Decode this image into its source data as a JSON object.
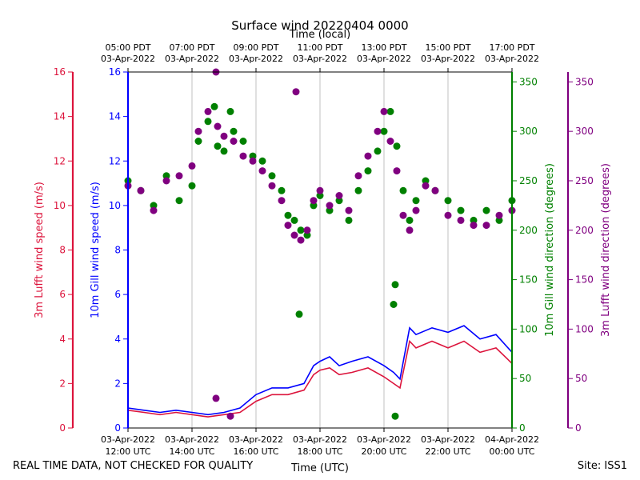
{
  "chart_data": {
    "type": "scatter+line",
    "title": "Surface wind 20220404 0000",
    "top_xlabel": "Time (local)",
    "bottom_xlabel": "Time (UTC)",
    "x_range_hours_utc": [
      12,
      24
    ],
    "top_ticks": [
      {
        "t": 12,
        "line1": "05:00 PDT",
        "line2": "03-Apr-2022"
      },
      {
        "t": 14,
        "line1": "07:00 PDT",
        "line2": "03-Apr-2022"
      },
      {
        "t": 16,
        "line1": "09:00 PDT",
        "line2": "03-Apr-2022"
      },
      {
        "t": 18,
        "line1": "11:00 PDT",
        "line2": "03-Apr-2022"
      },
      {
        "t": 20,
        "line1": "13:00 PDT",
        "line2": "03-Apr-2022"
      },
      {
        "t": 22,
        "line1": "15:00 PDT",
        "line2": "03-Apr-2022"
      },
      {
        "t": 24,
        "line1": "17:00 PDT",
        "line2": "03-Apr-2022"
      }
    ],
    "bottom_ticks": [
      {
        "t": 12,
        "line1": "03-Apr-2022",
        "line2": "12:00 UTC"
      },
      {
        "t": 14,
        "line1": "03-Apr-2022",
        "line2": "14:00 UTC"
      },
      {
        "t": 16,
        "line1": "03-Apr-2022",
        "line2": "16:00 UTC"
      },
      {
        "t": 18,
        "line1": "03-Apr-2022",
        "line2": "18:00 UTC"
      },
      {
        "t": 20,
        "line1": "03-Apr-2022",
        "line2": "20:00 UTC"
      },
      {
        "t": 22,
        "line1": "03-Apr-2022",
        "line2": "22:00 UTC"
      },
      {
        "t": 24,
        "line1": "04-Apr-2022",
        "line2": "00:00 UTC"
      }
    ],
    "axes": [
      {
        "id": "lufft_speed",
        "label": "3m Lufft wind speed (m/s)",
        "color": "#dc143c",
        "range": [
          0,
          16
        ],
        "ticks": [
          0,
          2,
          4,
          6,
          8,
          10,
          12,
          14,
          16
        ]
      },
      {
        "id": "gill_speed",
        "label": "10m Gill wind speed (m/s)",
        "color": "#0000ff",
        "range": [
          0,
          16
        ],
        "ticks": [
          0,
          2,
          4,
          6,
          8,
          10,
          12,
          14,
          16
        ]
      },
      {
        "id": "gill_dir",
        "label": "10m Gill wind direction (degrees)",
        "color": "#008000",
        "range": [
          0,
          360
        ],
        "ticks": [
          0,
          50,
          100,
          150,
          200,
          250,
          300,
          350
        ]
      },
      {
        "id": "lufft_dir",
        "label": "3m Lufft wind direction (degrees)",
        "color": "#800080",
        "range": [
          0,
          360
        ],
        "ticks": [
          0,
          50,
          100,
          150,
          200,
          250,
          300,
          350
        ]
      }
    ],
    "series": [
      {
        "name": "10m Gill wind speed",
        "axis": "gill_speed",
        "kind": "line",
        "color": "#0000ff",
        "x": [
          12.0,
          12.5,
          13.0,
          13.5,
          14.0,
          14.5,
          15.0,
          15.5,
          16.0,
          16.5,
          17.0,
          17.5,
          17.8,
          18.0,
          18.3,
          18.6,
          19.0,
          19.5,
          20.0,
          20.3,
          20.5,
          20.8,
          21.0,
          21.5,
          22.0,
          22.5,
          23.0,
          23.5,
          24.0
        ],
        "values": [
          0.9,
          0.8,
          0.7,
          0.8,
          0.7,
          0.6,
          0.7,
          0.9,
          1.5,
          1.8,
          1.8,
          2.0,
          2.8,
          3.0,
          3.2,
          2.8,
          3.0,
          3.2,
          2.8,
          2.5,
          2.2,
          4.5,
          4.2,
          4.5,
          4.3,
          4.6,
          4.0,
          4.2,
          3.4
        ]
      },
      {
        "name": "3m Lufft wind speed",
        "axis": "lufft_speed",
        "kind": "line",
        "color": "#dc143c",
        "x": [
          12.0,
          12.5,
          13.0,
          13.5,
          14.0,
          14.5,
          15.0,
          15.5,
          16.0,
          16.5,
          17.0,
          17.5,
          17.8,
          18.0,
          18.3,
          18.6,
          19.0,
          19.5,
          20.0,
          20.3,
          20.5,
          20.8,
          21.0,
          21.5,
          22.0,
          22.5,
          23.0,
          23.5,
          24.0
        ],
        "values": [
          0.8,
          0.7,
          0.6,
          0.7,
          0.6,
          0.5,
          0.6,
          0.7,
          1.2,
          1.5,
          1.5,
          1.7,
          2.4,
          2.6,
          2.7,
          2.4,
          2.5,
          2.7,
          2.3,
          2.0,
          1.8,
          3.9,
          3.6,
          3.9,
          3.6,
          3.9,
          3.4,
          3.6,
          2.9
        ]
      },
      {
        "name": "10m Gill wind direction",
        "axis": "gill_dir",
        "kind": "scatter",
        "color": "#008000",
        "x": [
          12.0,
          12.4,
          12.8,
          13.2,
          13.6,
          14.0,
          14.2,
          14.5,
          14.8,
          15.0,
          15.3,
          15.6,
          15.9,
          16.2,
          16.5,
          16.8,
          17.0,
          17.2,
          17.4,
          17.6,
          17.8,
          18.0,
          18.3,
          18.6,
          18.9,
          19.2,
          19.5,
          19.8,
          20.0,
          20.2,
          20.4,
          20.6,
          20.8,
          21.0,
          21.3,
          21.6,
          22.0,
          22.4,
          22.8,
          23.2,
          23.6,
          24.0,
          17.35,
          20.3,
          20.35,
          20.35,
          15.2,
          14.7
        ],
        "values": [
          250,
          240,
          225,
          255,
          230,
          245,
          290,
          310,
          285,
          280,
          300,
          290,
          275,
          270,
          255,
          240,
          215,
          210,
          200,
          195,
          225,
          235,
          220,
          230,
          210,
          240,
          260,
          280,
          300,
          320,
          285,
          240,
          210,
          230,
          250,
          240,
          230,
          220,
          210,
          220,
          210,
          230,
          115,
          125,
          145,
          12,
          320,
          325
        ]
      },
      {
        "name": "3m Lufft wind direction",
        "axis": "lufft_dir",
        "kind": "scatter",
        "color": "#800080",
        "x": [
          12.0,
          12.4,
          12.8,
          13.2,
          13.6,
          14.0,
          14.2,
          14.5,
          14.8,
          15.0,
          15.3,
          15.6,
          15.9,
          16.2,
          16.5,
          16.8,
          17.0,
          17.2,
          17.4,
          17.6,
          17.8,
          18.0,
          18.3,
          18.6,
          18.9,
          19.2,
          19.5,
          19.8,
          20.0,
          20.2,
          20.4,
          20.6,
          20.8,
          21.0,
          21.3,
          21.6,
          22.0,
          22.4,
          22.8,
          23.2,
          23.6,
          24.0,
          14.75,
          17.25,
          14.75,
          15.2
        ],
        "values": [
          245,
          240,
          220,
          250,
          255,
          265,
          300,
          320,
          305,
          295,
          290,
          275,
          270,
          260,
          245,
          230,
          205,
          195,
          190,
          200,
          230,
          240,
          225,
          235,
          220,
          255,
          275,
          300,
          320,
          290,
          260,
          215,
          200,
          220,
          245,
          240,
          215,
          210,
          205,
          205,
          215,
          220,
          360,
          340,
          30,
          12
        ]
      }
    ]
  },
  "footer": {
    "left": "REAL TIME DATA, NOT CHECKED FOR QUALITY",
    "right": "Site: ISS1"
  }
}
